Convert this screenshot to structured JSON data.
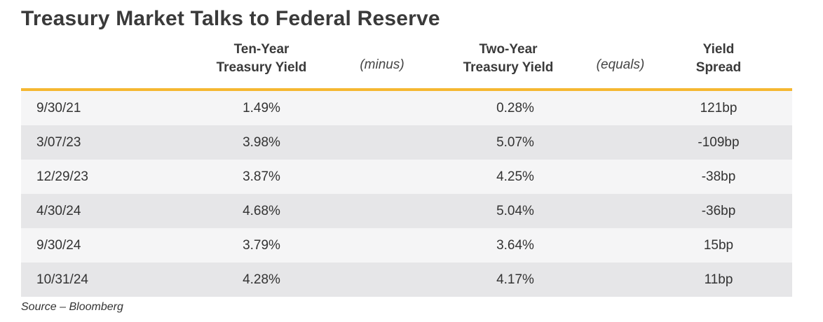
{
  "chart_data": {
    "type": "table",
    "title": "Treasury Market Talks to Federal Reserve",
    "columns": [
      {
        "line1": "",
        "line2": ""
      },
      {
        "line1": "Ten-Year",
        "line2": "Treasury Yield"
      },
      {
        "line1": "(minus)",
        "line2": ""
      },
      {
        "line1": "Two-Year",
        "line2": "Treasury Yield"
      },
      {
        "line1": "(equals)",
        "line2": ""
      },
      {
        "line1": "Yield",
        "line2": "Spread"
      }
    ],
    "rows": [
      {
        "date": "9/30/21",
        "ten_year": "1.49%",
        "two_year": "0.28%",
        "spread": "121bp"
      },
      {
        "date": "3/07/23",
        "ten_year": "3.98%",
        "two_year": "5.07%",
        "spread": "-109bp"
      },
      {
        "date": "12/29/23",
        "ten_year": "3.87%",
        "two_year": "4.25%",
        "spread": "-38bp"
      },
      {
        "date": "4/30/24",
        "ten_year": "4.68%",
        "two_year": "5.04%",
        "spread": "-36bp"
      },
      {
        "date": "9/30/24",
        "ten_year": "3.79%",
        "two_year": "3.64%",
        "spread": "15bp"
      },
      {
        "date": "10/31/24",
        "ten_year": "4.28%",
        "two_year": "4.17%",
        "spread": "11bp"
      }
    ],
    "source": "Source – Bloomberg",
    "colors": {
      "accent_rule": "#f5b731",
      "row_light": "#f5f5f6",
      "row_dark": "#e6e6e8"
    }
  }
}
